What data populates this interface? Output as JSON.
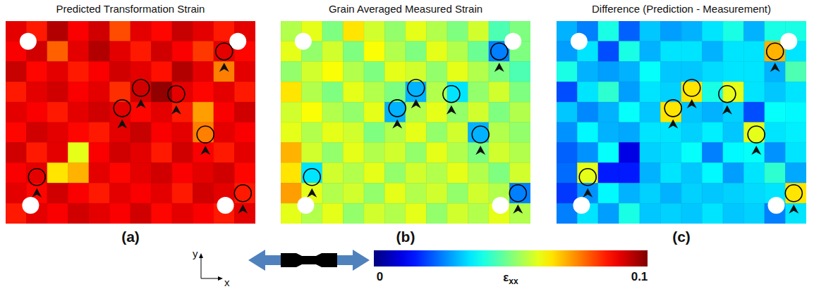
{
  "chart_data": [
    {
      "type": "heatmap",
      "title": "Predicted Transformation Strain",
      "panel_label": "(a)",
      "tick_labels": false,
      "z": [
        [
          0.09,
          0.085,
          0.095,
          0.088,
          0.092,
          0.08,
          0.09,
          0.087,
          0.093,
          0.09,
          0.085,
          0.09
        ],
        [
          0.088,
          0.092,
          0.078,
          0.09,
          0.095,
          0.09,
          0.085,
          0.092,
          0.088,
          0.082,
          0.09,
          0.087
        ],
        [
          0.093,
          0.087,
          0.09,
          0.085,
          0.088,
          0.092,
          0.09,
          0.086,
          0.095,
          0.09,
          0.075,
          0.09
        ],
        [
          0.085,
          0.09,
          0.092,
          0.088,
          0.09,
          0.083,
          0.092,
          0.098,
          0.09,
          0.087,
          0.09,
          0.085
        ],
        [
          0.09,
          0.088,
          0.085,
          0.09,
          0.092,
          0.09,
          0.087,
          0.09,
          0.085,
          0.072,
          0.088,
          0.092
        ],
        [
          0.087,
          0.092,
          0.09,
          0.087,
          0.085,
          0.09,
          0.093,
          0.088,
          0.09,
          0.075,
          0.09,
          0.088
        ],
        [
          0.092,
          0.085,
          0.09,
          0.06,
          0.088,
          0.092,
          0.09,
          0.085,
          0.092,
          0.088,
          0.085,
          0.09
        ],
        [
          0.088,
          0.09,
          0.065,
          0.07,
          0.09,
          0.087,
          0.09,
          0.092,
          0.088,
          0.09,
          0.092,
          0.087
        ],
        [
          0.09,
          0.087,
          0.092,
          0.088,
          0.085,
          0.09,
          0.088,
          0.09,
          0.085,
          0.092,
          0.09,
          0.085
        ],
        [
          0.085,
          0.09,
          0.088,
          0.092,
          0.09,
          0.088,
          0.092,
          0.087,
          0.09,
          0.088,
          0.085,
          0.09
        ]
      ],
      "highlights": [
        {
          "x": 10.5,
          "y": 1.5
        },
        {
          "x": 6.5,
          "y": 3.3
        },
        {
          "x": 8.2,
          "y": 3.6
        },
        {
          "x": 5.6,
          "y": 4.3
        },
        {
          "x": 9.6,
          "y": 5.6
        },
        {
          "x": 1.5,
          "y": 7.7
        },
        {
          "x": 11.4,
          "y": 8.5
        }
      ]
    },
    {
      "type": "heatmap",
      "title": "Grain Averaged Measured Strain",
      "panel_label": "(b)",
      "tick_labels": false,
      "z": [
        [
          0.055,
          0.06,
          0.05,
          0.065,
          0.058,
          0.052,
          0.06,
          0.055,
          0.05,
          0.058,
          0.045,
          0.05
        ],
        [
          0.06,
          0.052,
          0.058,
          0.05,
          0.062,
          0.055,
          0.05,
          0.06,
          0.055,
          0.048,
          0.025,
          0.05
        ],
        [
          0.052,
          0.058,
          0.062,
          0.055,
          0.05,
          0.06,
          0.058,
          0.052,
          0.06,
          0.055,
          0.05,
          0.045
        ],
        [
          0.065,
          0.055,
          0.05,
          0.06,
          0.055,
          0.05,
          0.03,
          0.055,
          0.035,
          0.052,
          0.058,
          0.05
        ],
        [
          0.058,
          0.062,
          0.055,
          0.052,
          0.06,
          0.03,
          0.055,
          0.06,
          0.052,
          0.058,
          0.05,
          0.055
        ],
        [
          0.06,
          0.055,
          0.06,
          0.058,
          0.05,
          0.055,
          0.06,
          0.052,
          0.058,
          0.03,
          0.055,
          0.052
        ],
        [
          0.07,
          0.058,
          0.052,
          0.06,
          0.055,
          0.058,
          0.052,
          0.06,
          0.055,
          0.05,
          0.058,
          0.055
        ],
        [
          0.065,
          0.035,
          0.058,
          0.055,
          0.06,
          0.052,
          0.058,
          0.055,
          0.06,
          0.055,
          0.05,
          0.058
        ],
        [
          0.072,
          0.06,
          0.055,
          0.058,
          0.052,
          0.06,
          0.055,
          0.058,
          0.052,
          0.058,
          0.055,
          0.025
        ],
        [
          0.06,
          0.055,
          0.06,
          0.052,
          0.058,
          0.055,
          0.06,
          0.052,
          0.058,
          0.055,
          0.06,
          0.055
        ]
      ],
      "highlights": [
        {
          "x": 10.5,
          "y": 1.5
        },
        {
          "x": 6.5,
          "y": 3.3
        },
        {
          "x": 8.2,
          "y": 3.6
        },
        {
          "x": 5.6,
          "y": 4.3
        },
        {
          "x": 9.6,
          "y": 5.6
        },
        {
          "x": 1.5,
          "y": 7.7
        },
        {
          "x": 11.4,
          "y": 8.5
        }
      ]
    },
    {
      "type": "heatmap",
      "title": "Difference (Prediction - Measurement)",
      "panel_label": "(c)",
      "tick_labels": false,
      "z": [
        [
          0.03,
          0.025,
          0.04,
          0.022,
          0.032,
          0.028,
          0.03,
          0.035,
          0.04,
          0.03,
          0.04,
          0.04
        ],
        [
          0.028,
          0.035,
          0.02,
          0.04,
          0.03,
          0.035,
          0.035,
          0.03,
          0.035,
          0.035,
          0.07,
          0.035
        ],
        [
          0.04,
          0.03,
          0.028,
          0.03,
          0.038,
          0.032,
          0.032,
          0.034,
          0.035,
          0.035,
          0.03,
          0.045
        ],
        [
          0.02,
          0.035,
          0.042,
          0.028,
          0.035,
          0.033,
          0.065,
          0.04,
          0.06,
          0.035,
          0.032,
          0.035
        ],
        [
          0.032,
          0.026,
          0.03,
          0.038,
          0.032,
          0.065,
          0.032,
          0.03,
          0.033,
          0.02,
          0.038,
          0.037
        ],
        [
          0.027,
          0.037,
          0.03,
          0.029,
          0.035,
          0.035,
          0.033,
          0.036,
          0.032,
          0.06,
          0.035,
          0.036
        ],
        [
          0.022,
          0.027,
          0.038,
          0.01,
          0.033,
          0.034,
          0.038,
          0.025,
          0.037,
          0.038,
          0.027,
          0.035
        ],
        [
          0.023,
          0.06,
          0.015,
          0.015,
          0.03,
          0.035,
          0.032,
          0.037,
          0.028,
          0.035,
          0.042,
          0.029
        ],
        [
          0.018,
          0.027,
          0.037,
          0.03,
          0.033,
          0.03,
          0.033,
          0.032,
          0.033,
          0.034,
          0.035,
          0.065
        ],
        [
          0.025,
          0.035,
          0.028,
          0.04,
          0.032,
          0.033,
          0.032,
          0.035,
          0.032,
          0.033,
          0.025,
          0.035
        ]
      ],
      "highlights": [
        {
          "x": 10.5,
          "y": 1.5
        },
        {
          "x": 6.5,
          "y": 3.3
        },
        {
          "x": 8.2,
          "y": 3.6
        },
        {
          "x": 5.6,
          "y": 4.3
        },
        {
          "x": 9.6,
          "y": 5.6
        },
        {
          "x": 1.5,
          "y": 7.7
        },
        {
          "x": 11.4,
          "y": 8.5
        }
      ]
    }
  ],
  "colorbar": {
    "label": "εxx",
    "lim": [
      0,
      0.1
    ],
    "ticks": [
      0,
      0.1
    ]
  },
  "axes_glyph": {
    "x": "x",
    "y": "y"
  }
}
